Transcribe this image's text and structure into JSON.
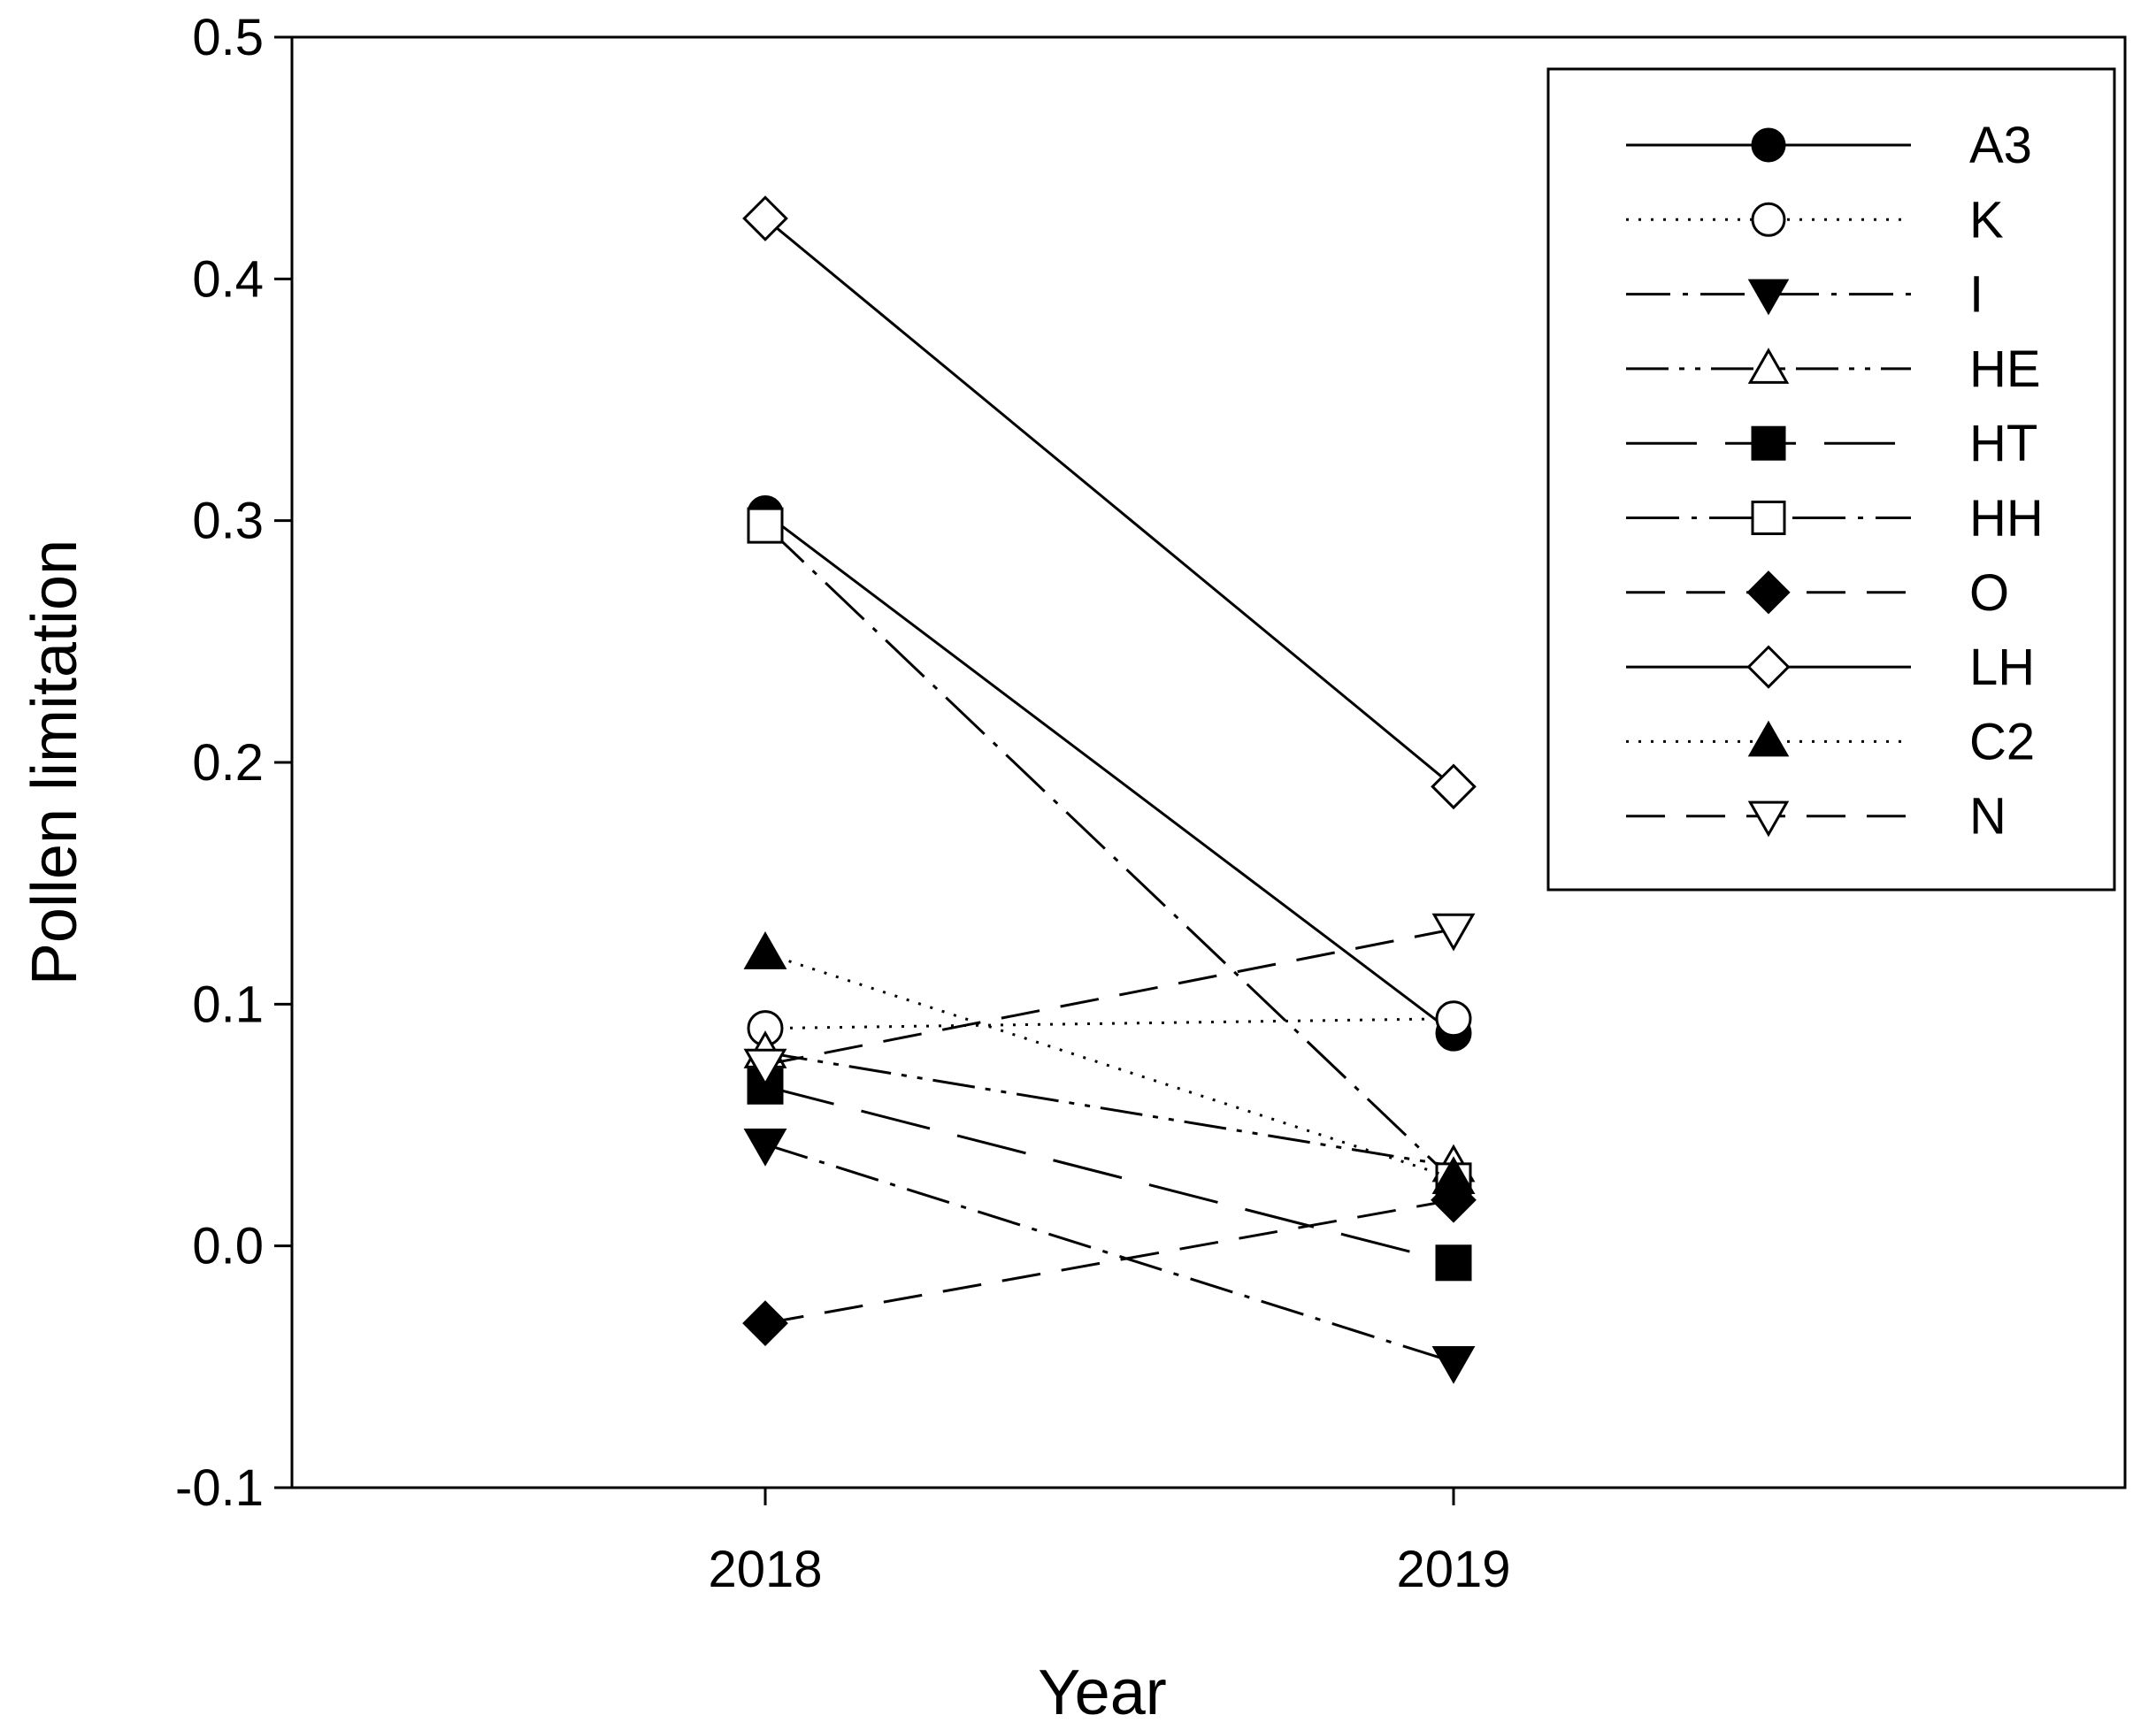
{
  "chart_data": {
    "type": "line",
    "title": "",
    "xlabel": "Year",
    "ylabel": "Pollen limitation",
    "categories": [
      "2018",
      "2019"
    ],
    "ylim": [
      -0.1,
      0.5
    ],
    "yticks": [
      "-0.1",
      "0.0",
      "0.1",
      "0.2",
      "0.3",
      "0.4",
      "0.5"
    ],
    "grid": false,
    "legend_position": "top-right",
    "series": [
      {
        "name": "A3",
        "values": [
          0.303,
          0.088
        ],
        "marker": "circle",
        "filled": true,
        "dash": "solid"
      },
      {
        "name": "K",
        "values": [
          0.09,
          0.094
        ],
        "marker": "circle",
        "filled": false,
        "dash": "dotted"
      },
      {
        "name": "I",
        "values": [
          0.042,
          -0.048
        ],
        "marker": "triangle-down",
        "filled": true,
        "dash": "dash-dot"
      },
      {
        "name": "HE",
        "values": [
          0.08,
          0.033
        ],
        "marker": "triangle-up",
        "filled": false,
        "dash": "dash-dot-dot"
      },
      {
        "name": "HT",
        "values": [
          0.066,
          -0.007
        ],
        "marker": "square",
        "filled": true,
        "dash": "long-dash"
      },
      {
        "name": "HH",
        "values": [
          0.298,
          0.027
        ],
        "marker": "square",
        "filled": false,
        "dash": "dash-dot-long"
      },
      {
        "name": "O",
        "values": [
          -0.032,
          0.019
        ],
        "marker": "diamond",
        "filled": true,
        "dash": "dashed"
      },
      {
        "name": "LH",
        "values": [
          0.425,
          0.19
        ],
        "marker": "diamond",
        "filled": false,
        "dash": "solid"
      },
      {
        "name": "C2",
        "values": [
          0.121,
          0.028
        ],
        "marker": "triangle-up",
        "filled": true,
        "dash": "dotted"
      },
      {
        "name": "N",
        "values": [
          0.075,
          0.131
        ],
        "marker": "triangle-down",
        "filled": false,
        "dash": "dashed"
      }
    ]
  }
}
